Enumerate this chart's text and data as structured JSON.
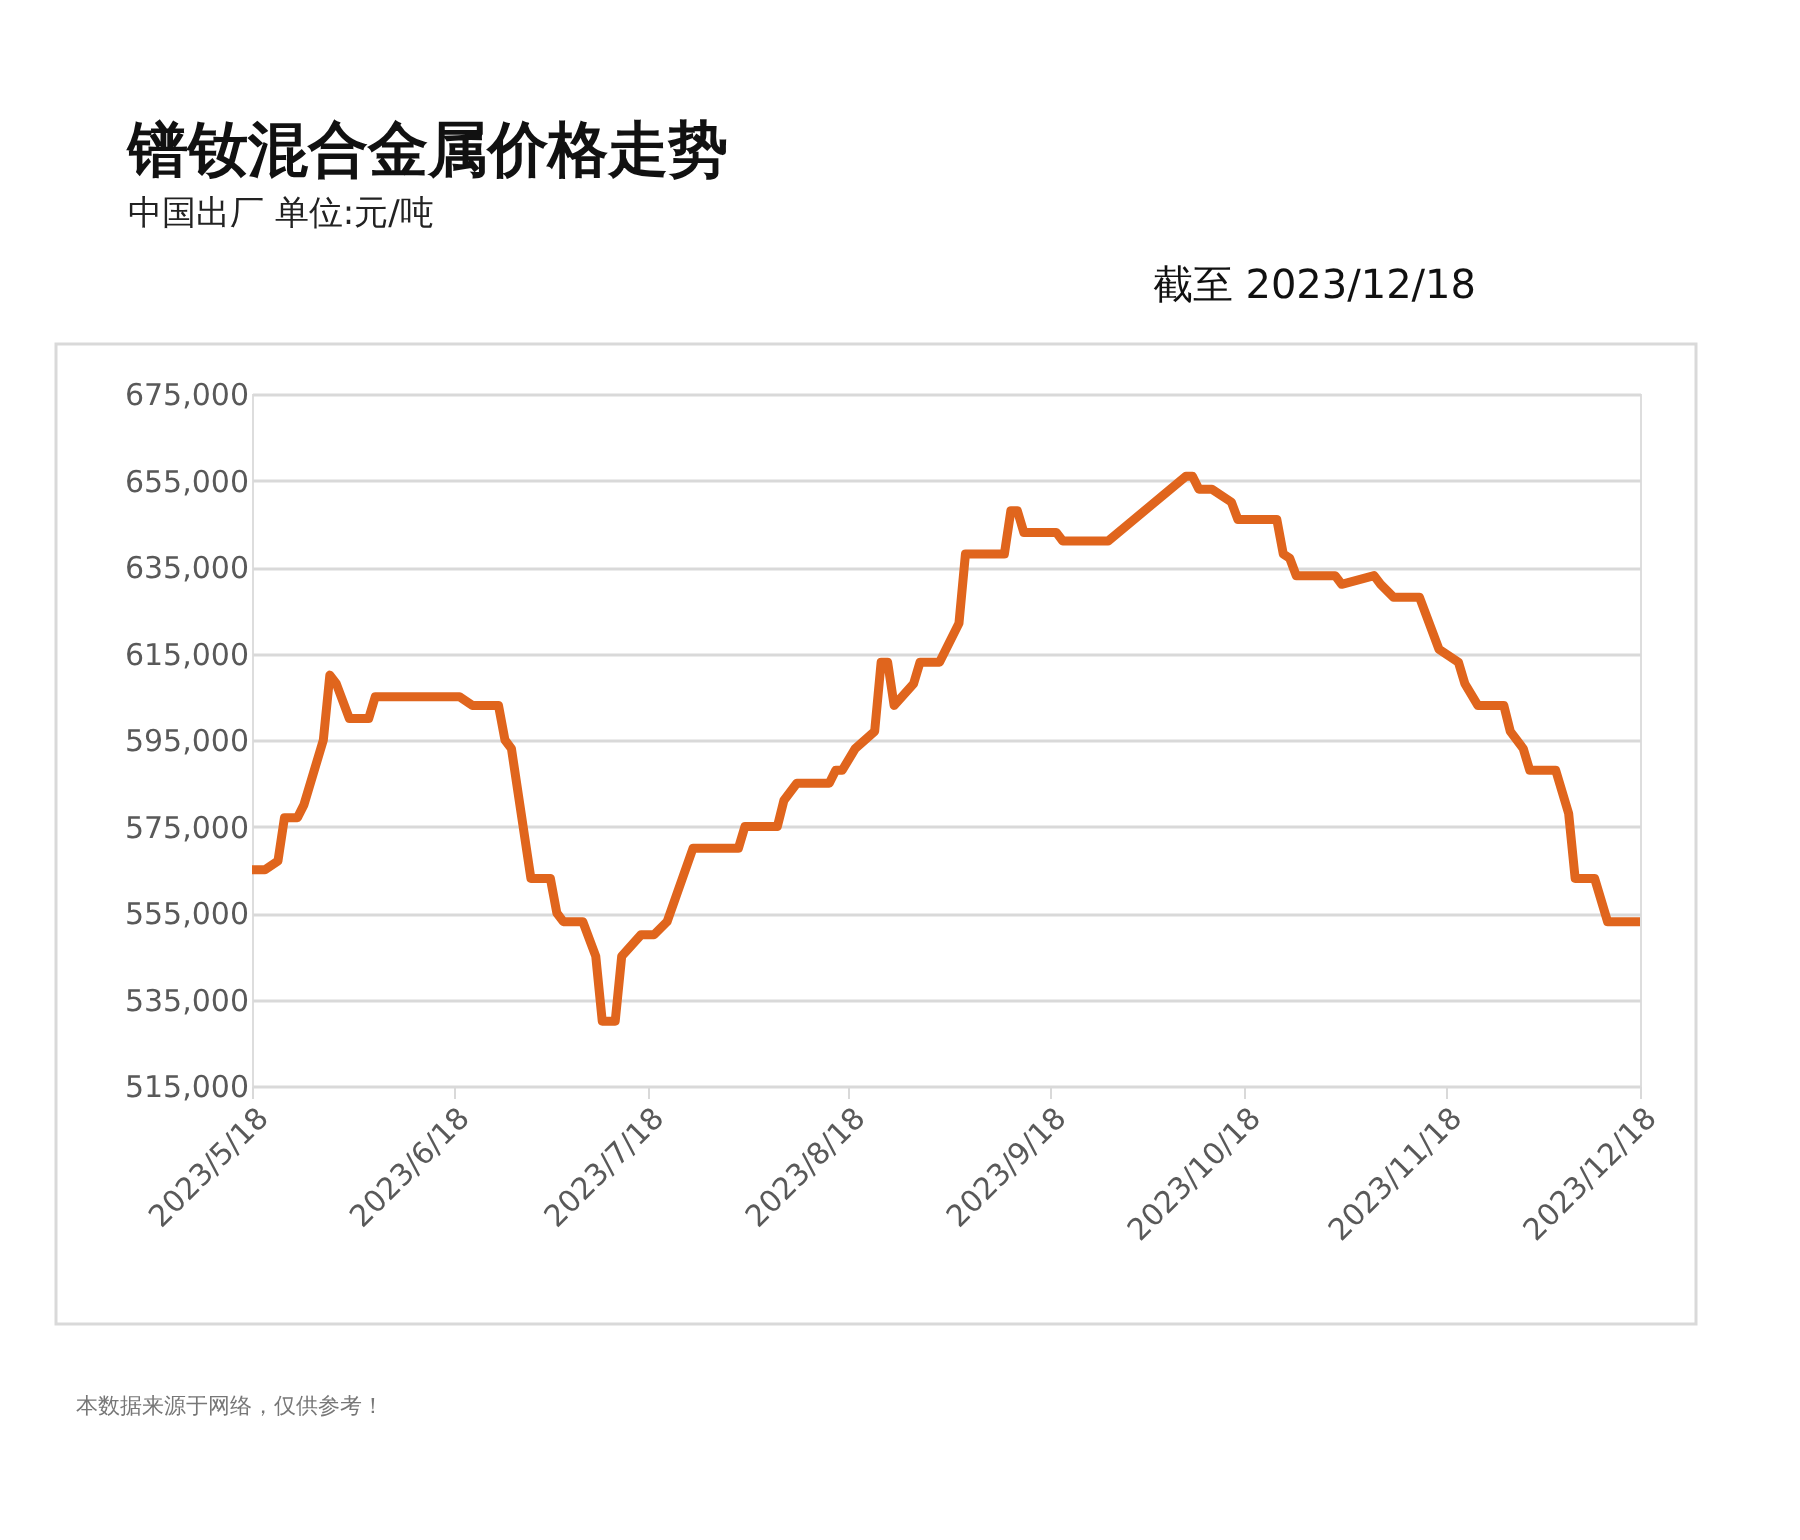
{
  "chart_data": {
    "type": "line",
    "title": "镨钕混合金属价格走势",
    "subtitle": "中国出厂  单位:元/吨",
    "annotations": [
      "截至 2023/12/18",
      "本数据来源于网络，仅供参考！"
    ],
    "x": [
      "2023-05-18",
      "2023-05-20",
      "2023-05-22",
      "2023-05-23",
      "2023-05-25",
      "2023-05-26",
      "2023-05-29",
      "2023-05-30",
      "2023-05-31",
      "2023-06-02",
      "2023-06-05",
      "2023-06-06",
      "2023-06-19",
      "2023-06-21",
      "2023-06-25",
      "2023-06-26",
      "2023-06-27",
      "2023-06-30",
      "2023-07-03",
      "2023-07-04",
      "2023-07-05",
      "2023-07-08",
      "2023-07-10",
      "2023-07-11",
      "2023-07-13",
      "2023-07-14",
      "2023-07-17",
      "2023-07-19",
      "2023-07-21",
      "2023-07-25",
      "2023-07-29",
      "2023-08-01",
      "2023-08-02",
      "2023-08-07",
      "2023-08-08",
      "2023-08-10",
      "2023-08-15",
      "2023-08-16",
      "2023-08-17",
      "2023-08-19",
      "2023-08-22",
      "2023-08-23",
      "2023-08-24",
      "2023-08-25",
      "2023-08-28",
      "2023-08-29",
      "2023-09-01",
      "2023-09-04",
      "2023-09-05",
      "2023-09-11",
      "2023-09-12",
      "2023-09-13",
      "2023-09-14",
      "2023-09-19",
      "2023-09-20",
      "2023-09-27",
      "2023-10-09",
      "2023-10-10",
      "2023-10-11",
      "2023-10-13",
      "2023-10-16",
      "2023-10-17",
      "2023-10-23",
      "2023-10-24",
      "2023-10-25",
      "2023-10-26",
      "2023-11-01",
      "2023-11-02",
      "2023-11-07",
      "2023-11-08",
      "2023-11-10",
      "2023-11-14",
      "2023-11-17",
      "2023-11-20",
      "2023-11-21",
      "2023-11-23",
      "2023-11-27",
      "2023-11-28",
      "2023-11-30",
      "2023-12-01",
      "2023-12-05",
      "2023-12-07",
      "2023-12-08",
      "2023-12-11",
      "2023-12-13",
      "2023-12-18"
    ],
    "series": [
      {
        "color": "#e0651d",
        "values": [
          565000,
          565000,
          567000,
          577000,
          577000,
          580000,
          595000,
          610000,
          608000,
          600000,
          600000,
          605000,
          605000,
          603000,
          603000,
          595000,
          593000,
          563000,
          563000,
          555000,
          553000,
          553000,
          545000,
          530000,
          530000,
          545000,
          550000,
          550000,
          553000,
          570000,
          570000,
          570000,
          575000,
          575000,
          581000,
          585000,
          585000,
          588000,
          588000,
          593000,
          597000,
          613000,
          613000,
          603000,
          608000,
          613000,
          613000,
          622000,
          638000,
          638000,
          648000,
          648000,
          643000,
          643000,
          641000,
          641000,
          656000,
          656000,
          653000,
          653000,
          650000,
          646000,
          646000,
          638000,
          637000,
          633000,
          633000,
          631000,
          633000,
          631000,
          628000,
          628000,
          616000,
          613000,
          608000,
          603000,
          603000,
          597000,
          593000,
          588000,
          588000,
          578000,
          563000,
          563000,
          553000,
          553000
        ]
      }
    ],
    "xlim": [
      "2023-05-18",
      "2023-12-18"
    ],
    "xticks": [
      {
        "value": "2023-05-18",
        "label": "2023/5/18"
      },
      {
        "value": "2023-06-18",
        "label": "2023/6/18"
      },
      {
        "value": "2023-07-18",
        "label": "2023/7/18"
      },
      {
        "value": "2023-08-18",
        "label": "2023/8/18"
      },
      {
        "value": "2023-09-18",
        "label": "2023/9/18"
      },
      {
        "value": "2023-10-18",
        "label": "2023/10/18"
      },
      {
        "value": "2023-11-18",
        "label": "2023/11/18"
      },
      {
        "value": "2023-12-18",
        "label": "2023/12/18"
      }
    ],
    "ylim": [
      515000,
      675000
    ],
    "yticks": [
      {
        "value": 515000,
        "label": "515,000"
      },
      {
        "value": 535000,
        "label": "535,000"
      },
      {
        "value": 555000,
        "label": "555,000"
      },
      {
        "value": 575000,
        "label": "575,000"
      },
      {
        "value": 595000,
        "label": "595,000"
      },
      {
        "value": 615000,
        "label": "615,000"
      },
      {
        "value": 635000,
        "label": "635,000"
      },
      {
        "value": 655000,
        "label": "655,000"
      },
      {
        "value": 675000,
        "label": "675,000"
      }
    ],
    "grid": "y",
    "marker": "none",
    "line_style": "solid"
  }
}
